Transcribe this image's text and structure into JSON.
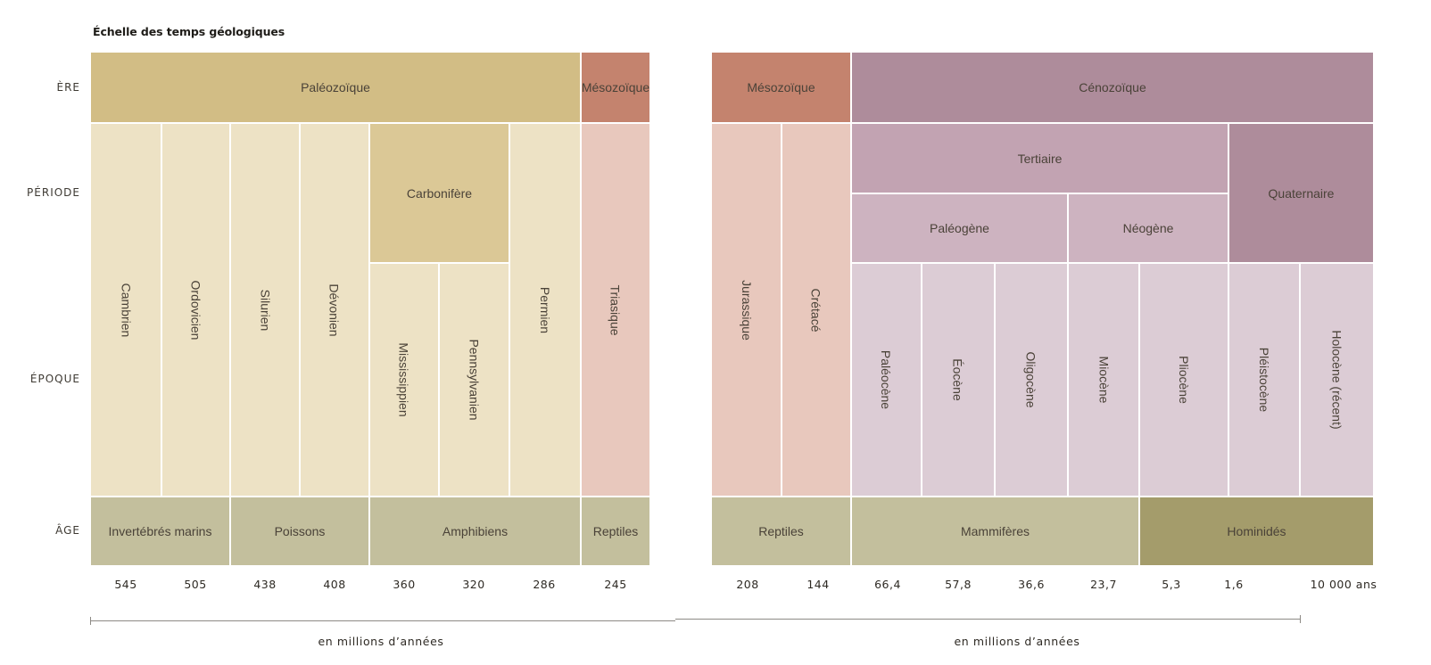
{
  "title": "Échelle des temps géologiques",
  "row_labels": {
    "era": "ÈRE",
    "period": "PÉRIODE",
    "epoch": "ÉPOQUE",
    "age": "ÂGE"
  },
  "left": {
    "era": [
      "Paléozoïque",
      "Mésozoïque"
    ],
    "periods": [
      "Carbonifère"
    ],
    "epochs": [
      "Cambrien",
      "Ordovicien",
      "Silurien",
      "Dévonien",
      "Mississippien",
      "Pennsylvanien",
      "Permien",
      "Triasique"
    ],
    "ages": [
      "Invertébrés marins",
      "Poissons",
      "Amphibiens",
      "Reptiles"
    ],
    "ticks": [
      "545",
      "505",
      "438",
      "408",
      "360",
      "320",
      "286",
      "245"
    ],
    "unit": "en millions d’années"
  },
  "right": {
    "era": [
      "Mésozoïque",
      "Cénozoïque"
    ],
    "periods": [
      "Tertiaire",
      "Quaternaire",
      "Paléogène",
      "Néogène"
    ],
    "epochs": [
      "Jurassique",
      "Crétacé",
      "Paléocène",
      "Éocène",
      "Oligocène",
      "Miocène",
      "Pliocène",
      "Pléistocène",
      "Holocène (récent)"
    ],
    "ages": [
      "Reptiles",
      "Mammifères",
      "Hominidés"
    ],
    "ticks": [
      "208",
      "144",
      "66,4",
      "57,8",
      "36,6",
      "23,7",
      "5,3",
      "1,6",
      "10 000 ans"
    ],
    "unit": "en millions d’années"
  },
  "colors": {
    "paleozoic_era": "#d2bd85",
    "paleozoic_light": "#ede2c5",
    "mesozoic_era": "#c4836e",
    "mesozoic_light": "#e8c8bd",
    "cenozoic_era": "#ae8c9b",
    "cenozoic_light": "#dcccd5",
    "age_band": "#c3bf9d",
    "hominids": "#a49c6b"
  }
}
